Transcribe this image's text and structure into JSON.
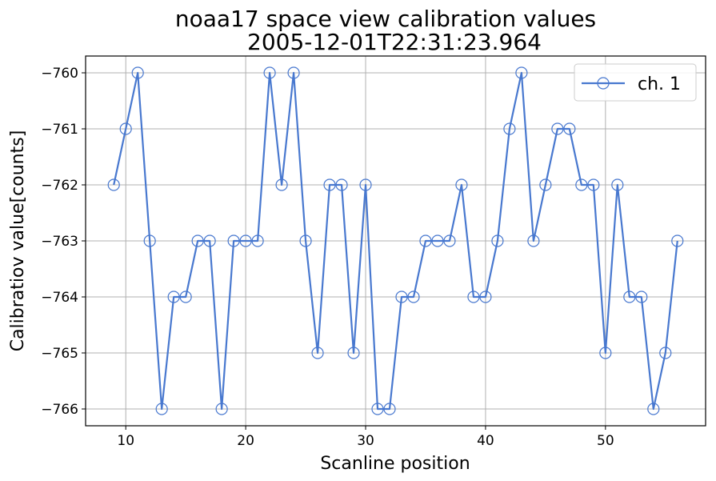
{
  "chart_data": {
    "type": "line",
    "title": "noaa17 space view calibration values",
    "subtitle": "2005-12-01T22:31:23.964",
    "xlabel": "Scanline position",
    "ylabel": "Calibratiov value[counts]",
    "xlim": [
      6.65,
      58.35
    ],
    "ylim": [
      -766.3,
      -759.7
    ],
    "xticks": [
      10,
      20,
      30,
      40,
      50
    ],
    "yticks": [
      -760,
      -761,
      -762,
      -763,
      -764,
      -765,
      -766
    ],
    "xtick_labels": [
      "10",
      "20",
      "30",
      "40",
      "50"
    ],
    "ytick_labels": [
      "−760",
      "−761",
      "−762",
      "−763",
      "−764",
      "−765",
      "−766"
    ],
    "grid": true,
    "legend_position": "top-right",
    "series": [
      {
        "name": "ch. 1",
        "color": "#4878cf",
        "marker": "open-circle",
        "x": [
          9,
          10,
          11,
          12,
          13,
          14,
          15,
          16,
          17,
          18,
          19,
          20,
          21,
          22,
          23,
          24,
          25,
          26,
          27,
          28,
          29,
          30,
          31,
          32,
          33,
          34,
          35,
          36,
          37,
          38,
          39,
          40,
          41,
          42,
          43,
          44,
          45,
          46,
          47,
          48,
          49,
          50,
          51,
          52,
          53,
          54,
          55,
          56
        ],
        "y": [
          -762,
          -761,
          -760,
          -763,
          -766,
          -764,
          -764,
          -763,
          -763,
          -766,
          -763,
          -763,
          -763,
          -760,
          -762,
          -760,
          -763,
          -765,
          -762,
          -762,
          -765,
          -762,
          -766,
          -766,
          -764,
          -764,
          -763,
          -763,
          -763,
          -762,
          -764,
          -764,
          -763,
          -761,
          -760,
          -763,
          -762,
          -761,
          -761,
          -762,
          -762,
          -765,
          -762,
          -764,
          -764,
          -766,
          -765,
          -763
        ]
      }
    ]
  }
}
